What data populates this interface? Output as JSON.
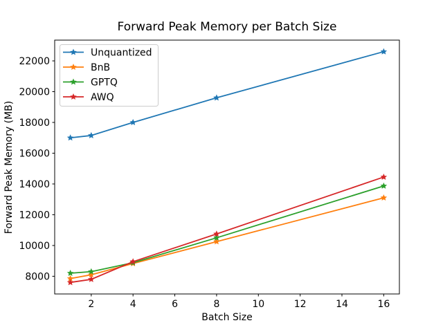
{
  "chart_data": {
    "type": "line",
    "title": "Forward Peak Memory per Batch Size",
    "xlabel": "Batch Size",
    "ylabel": "Forward Peak Memory (MB)",
    "x": [
      1,
      2,
      4,
      8,
      16
    ],
    "series": [
      {
        "name": "Unquantized",
        "color": "#1f77b4",
        "values": [
          17000,
          17150,
          18000,
          19600,
          22600
        ]
      },
      {
        "name": "BnB",
        "color": "#ff7f0e",
        "values": [
          7850,
          8100,
          8830,
          10250,
          13100
        ]
      },
      {
        "name": "GPTQ",
        "color": "#2ca02c",
        "values": [
          8200,
          8300,
          8880,
          10500,
          13870
        ]
      },
      {
        "name": "AWQ",
        "color": "#d62728",
        "values": [
          7600,
          7800,
          8950,
          10750,
          14450
        ]
      }
    ],
    "xticks": [
      2,
      4,
      6,
      8,
      10,
      12,
      14,
      16
    ],
    "yticks": [
      8000,
      10000,
      12000,
      14000,
      16000,
      18000,
      20000,
      22000
    ],
    "xlim": [
      0.25,
      16.75
    ],
    "ylim": [
      6850,
      23350
    ],
    "marker": "star",
    "grid": false,
    "legend_position": "upper-left",
    "background_color": "#ffffff",
    "axis_color": "#000000",
    "legend_border_color": "#cccccc"
  }
}
